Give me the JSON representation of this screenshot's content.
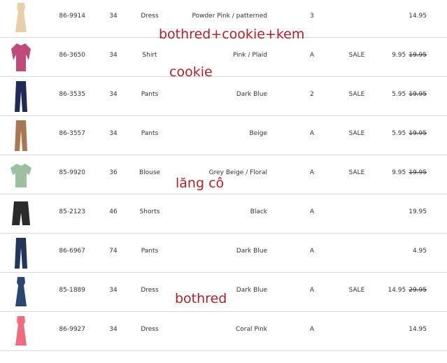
{
  "rows": [
    {
      "code": "86-9914",
      "size": "34",
      "type": "Dress",
      "color": "Powder Pink / patterned",
      "grade": "3",
      "sale": "",
      "price": "14.95",
      "was": "",
      "thumb": "dress-icon",
      "thumb_color": "#e8cfa8"
    },
    {
      "code": "86-3650",
      "size": "34",
      "type": "Shirt",
      "color": "Pink / Plaid",
      "grade": "A",
      "sale": "SALE",
      "price": "9.95",
      "was": "19.95",
      "thumb": "shirt-icon",
      "thumb_color": "#c04a7a"
    },
    {
      "code": "86-3535",
      "size": "34",
      "type": "Pants",
      "color": "Dark Blue",
      "grade": "2",
      "sale": "SALE",
      "price": "5.95",
      "was": "19.95",
      "thumb": "pants-icon",
      "thumb_color": "#1f2a55"
    },
    {
      "code": "86-3557",
      "size": "34",
      "type": "Pants",
      "color": "Beige",
      "grade": "A",
      "sale": "SALE",
      "price": "5.95",
      "was": "19.95",
      "thumb": "pants-icon",
      "thumb_color": "#a87850"
    },
    {
      "code": "85-9920",
      "size": "36",
      "type": "Blouse",
      "color": "Grey Beige / Floral",
      "grade": "A",
      "sale": "SALE",
      "price": "9.95",
      "was": "19.95",
      "thumb": "blouse-icon",
      "thumb_color": "#9cc0a0"
    },
    {
      "code": "85-2123",
      "size": "46",
      "type": "Shorts",
      "color": "Black",
      "grade": "A",
      "sale": "",
      "price": "19.95",
      "was": "",
      "thumb": "shorts-icon",
      "thumb_color": "#2a2a2a"
    },
    {
      "code": "86-6967",
      "size": "74",
      "type": "Pants",
      "color": "Dark Blue",
      "grade": "A",
      "sale": "",
      "price": "4.95",
      "was": "",
      "thumb": "pants-icon",
      "thumb_color": "#23365a"
    },
    {
      "code": "85-1889",
      "size": "34",
      "type": "Dress",
      "color": "Dark Blue",
      "grade": "A",
      "sale": "SALE",
      "price": "14.95",
      "was": "29.95",
      "thumb": "dress-icon",
      "thumb_color": "#2c4670"
    },
    {
      "code": "86-9927",
      "size": "34",
      "type": "Dress",
      "color": "Coral Pink",
      "grade": "A",
      "sale": "",
      "price": "14.95",
      "was": "",
      "thumb": "dress-icon",
      "thumb_color": "#f06a80"
    }
  ],
  "notes": [
    "bothred+cookie+kem",
    "cookie",
    "lăng cô",
    "bothred"
  ],
  "colors": {
    "sale_price": "#e0202a",
    "note": "#b0202a"
  }
}
